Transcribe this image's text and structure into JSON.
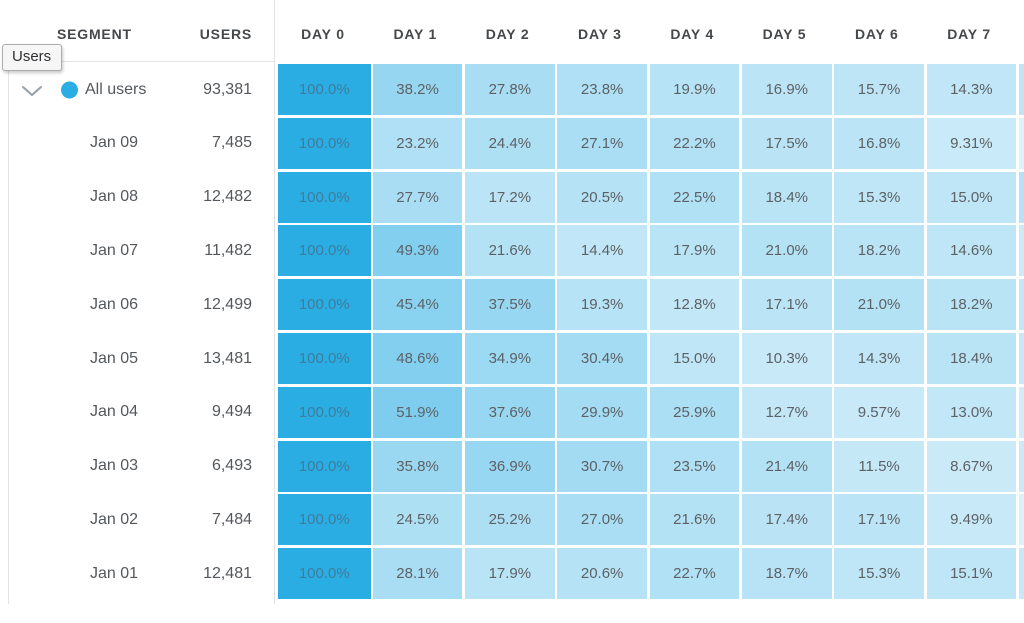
{
  "tooltip": {
    "label": "Users"
  },
  "table": {
    "left_headers": {
      "segment": "SEGMENT",
      "users": "USERS"
    },
    "day_headers": [
      "DAY 0",
      "DAY 1",
      "DAY 2",
      "DAY 3",
      "DAY 4",
      "DAY 5",
      "DAY 6",
      "DAY 7"
    ],
    "rows": [
      {
        "segment": "All users",
        "users": "93,381",
        "expandable": true,
        "labels": [
          "100.0%",
          "38.2%",
          "27.8%",
          "23.8%",
          "19.9%",
          "16.9%",
          "15.7%",
          "14.3%"
        ],
        "values": [
          100.0,
          38.2,
          27.8,
          23.8,
          19.9,
          16.9,
          15.7,
          14.3
        ]
      },
      {
        "segment": "Jan 09",
        "users": "7,485",
        "expandable": false,
        "labels": [
          "100.0%",
          "23.2%",
          "24.4%",
          "27.1%",
          "22.2%",
          "17.5%",
          "16.8%",
          "9.31%"
        ],
        "values": [
          100.0,
          23.2,
          24.4,
          27.1,
          22.2,
          17.5,
          16.8,
          9.31
        ]
      },
      {
        "segment": "Jan 08",
        "users": "12,482",
        "expandable": false,
        "labels": [
          "100.0%",
          "27.7%",
          "17.2%",
          "20.5%",
          "22.5%",
          "18.4%",
          "15.3%",
          "15.0%"
        ],
        "values": [
          100.0,
          27.7,
          17.2,
          20.5,
          22.5,
          18.4,
          15.3,
          15.0
        ]
      },
      {
        "segment": "Jan 07",
        "users": "11,482",
        "expandable": false,
        "labels": [
          "100.0%",
          "49.3%",
          "21.6%",
          "14.4%",
          "17.9%",
          "21.0%",
          "18.2%",
          "14.6%"
        ],
        "values": [
          100.0,
          49.3,
          21.6,
          14.4,
          17.9,
          21.0,
          18.2,
          14.6
        ]
      },
      {
        "segment": "Jan 06",
        "users": "12,499",
        "expandable": false,
        "labels": [
          "100.0%",
          "45.4%",
          "37.5%",
          "19.3%",
          "12.8%",
          "17.1%",
          "21.0%",
          "18.2%"
        ],
        "values": [
          100.0,
          45.4,
          37.5,
          19.3,
          12.8,
          17.1,
          21.0,
          18.2
        ]
      },
      {
        "segment": "Jan 05",
        "users": "13,481",
        "expandable": false,
        "labels": [
          "100.0%",
          "48.6%",
          "34.9%",
          "30.4%",
          "15.0%",
          "10.3%",
          "14.3%",
          "18.4%"
        ],
        "values": [
          100.0,
          48.6,
          34.9,
          30.4,
          15.0,
          10.3,
          14.3,
          18.4
        ]
      },
      {
        "segment": "Jan 04",
        "users": "9,494",
        "expandable": false,
        "labels": [
          "100.0%",
          "51.9%",
          "37.6%",
          "29.9%",
          "25.9%",
          "12.7%",
          "9.57%",
          "13.0%"
        ],
        "values": [
          100.0,
          51.9,
          37.6,
          29.9,
          25.9,
          12.7,
          9.57,
          13.0
        ]
      },
      {
        "segment": "Jan 03",
        "users": "6,493",
        "expandable": false,
        "labels": [
          "100.0%",
          "35.8%",
          "36.9%",
          "30.7%",
          "23.5%",
          "21.4%",
          "11.5%",
          "8.67%"
        ],
        "values": [
          100.0,
          35.8,
          36.9,
          30.7,
          23.5,
          21.4,
          11.5,
          8.67
        ]
      },
      {
        "segment": "Jan 02",
        "users": "7,484",
        "expandable": false,
        "labels": [
          "100.0%",
          "24.5%",
          "25.2%",
          "27.0%",
          "21.6%",
          "17.4%",
          "17.1%",
          "9.49%"
        ],
        "values": [
          100.0,
          24.5,
          25.2,
          27.0,
          21.6,
          17.4,
          17.1,
          9.49
        ]
      },
      {
        "segment": "Jan 01",
        "users": "12,481",
        "expandable": false,
        "labels": [
          "100.0%",
          "28.1%",
          "17.9%",
          "20.6%",
          "22.7%",
          "18.7%",
          "15.3%",
          "15.1%"
        ],
        "values": [
          100.0,
          28.1,
          17.9,
          20.6,
          22.7,
          18.7,
          15.3,
          15.1
        ]
      }
    ],
    "partial_day8_colors": [
      "#BFE4F6",
      "#DDF1FA",
      "#B5E0F5",
      "#CDEAF8",
      "#C4E6F7",
      "#C9E8F7",
      "#D2ECF9",
      "#CDE9F8",
      "#DAF0FA",
      "#C9E8F7"
    ]
  },
  "colors": {
    "accent_blue": "#29ADE3",
    "cell_zero": "#D9F0FA",
    "cell_text": "#5D6165",
    "cell_text_on_accent": "#3F7D9E",
    "header_text": "#45484B",
    "label_text": "#54585C",
    "divider": "#E3E3E3",
    "chevron": "#97A0A6",
    "tooltip_bg": "#F6F6F6",
    "tooltip_border": "#ADADAD",
    "tooltip_text": "#2E3033"
  }
}
